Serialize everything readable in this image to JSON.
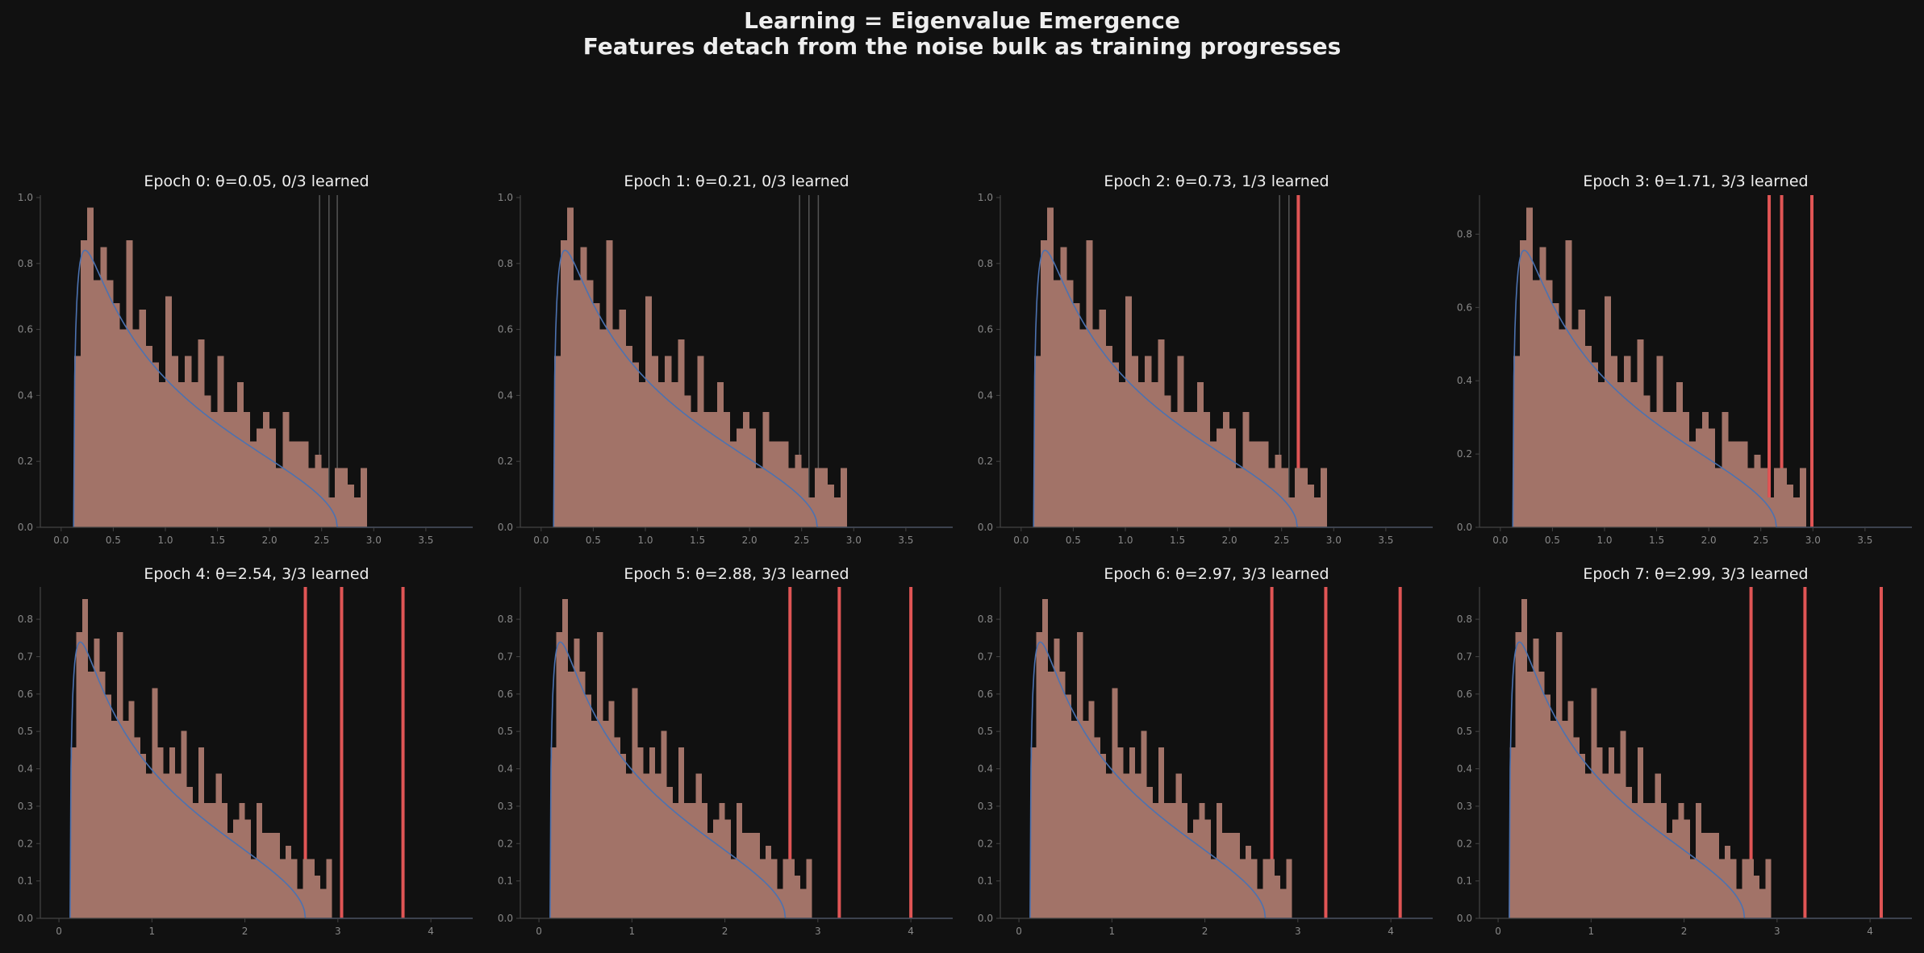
{
  "figure": {
    "title_line1": "Learning = Eigenvalue Emergence",
    "title_line2": "Features detach from the noise bulk as training progresses"
  },
  "colors": {
    "background": "#111111",
    "histogram_fill": "#a27368",
    "bulk_curve": "#4c72b0",
    "learned_spike": "#e05555",
    "unlearned_spike": "#555555",
    "axis": "#444444",
    "tick_label": "#888888",
    "text": "#eeeeee"
  },
  "chart_data": [
    {
      "type": "histogram",
      "title": "Epoch 0: θ=0.05, 0/3 learned",
      "theta": 0.05,
      "learned": 0,
      "total": 3,
      "xlim": [
        -0.2,
        3.95
      ],
      "ylim": [
        0,
        1.0
      ],
      "xticks": [
        0.0,
        0.5,
        1.0,
        1.5,
        2.0,
        2.5,
        3.0,
        3.5
      ],
      "xtick_labels": [
        "0.0",
        "0.5",
        "1.0",
        "1.5",
        "2.0",
        "2.5",
        "3.0",
        "3.5"
      ],
      "yticks": [
        0.0,
        0.2,
        0.4,
        0.6,
        0.8,
        1.0
      ],
      "ytick_labels": [
        "0.0",
        "0.2",
        "0.4",
        "0.6",
        "0.8",
        "1.0"
      ],
      "bulk_edge": 2.65,
      "spikes": [
        {
          "x": 2.48,
          "learned": false
        },
        {
          "x": 2.57,
          "learned": false
        },
        {
          "x": 2.65,
          "learned": false
        }
      ]
    },
    {
      "type": "histogram",
      "title": "Epoch 1: θ=0.21, 0/3 learned",
      "theta": 0.21,
      "learned": 0,
      "total": 3,
      "xlim": [
        -0.2,
        3.95
      ],
      "ylim": [
        0,
        1.0
      ],
      "xticks": [
        0.0,
        0.5,
        1.0,
        1.5,
        2.0,
        2.5,
        3.0,
        3.5
      ],
      "xtick_labels": [
        "0.0",
        "0.5",
        "1.0",
        "1.5",
        "2.0",
        "2.5",
        "3.0",
        "3.5"
      ],
      "yticks": [
        0.0,
        0.2,
        0.4,
        0.6,
        0.8,
        1.0
      ],
      "ytick_labels": [
        "0.0",
        "0.2",
        "0.4",
        "0.6",
        "0.8",
        "1.0"
      ],
      "bulk_edge": 2.65,
      "spikes": [
        {
          "x": 2.48,
          "learned": false
        },
        {
          "x": 2.57,
          "learned": false
        },
        {
          "x": 2.66,
          "learned": false
        }
      ]
    },
    {
      "type": "histogram",
      "title": "Epoch 2: θ=0.73, 1/3 learned",
      "theta": 0.73,
      "learned": 1,
      "total": 3,
      "xlim": [
        -0.2,
        3.95
      ],
      "ylim": [
        0,
        1.0
      ],
      "xticks": [
        0.0,
        0.5,
        1.0,
        1.5,
        2.0,
        2.5,
        3.0,
        3.5
      ],
      "xtick_labels": [
        "0.0",
        "0.5",
        "1.0",
        "1.5",
        "2.0",
        "2.5",
        "3.0",
        "3.5"
      ],
      "yticks": [
        0.0,
        0.2,
        0.4,
        0.6,
        0.8,
        1.0
      ],
      "ytick_labels": [
        "0.0",
        "0.2",
        "0.4",
        "0.6",
        "0.8",
        "1.0"
      ],
      "bulk_edge": 2.65,
      "spikes": [
        {
          "x": 2.48,
          "learned": false
        },
        {
          "x": 2.57,
          "learned": false
        },
        {
          "x": 2.66,
          "learned": true
        }
      ]
    },
    {
      "type": "histogram",
      "title": "Epoch 3: θ=1.71, 3/3 learned",
      "theta": 1.71,
      "learned": 3,
      "total": 3,
      "xlim": [
        -0.2,
        3.95
      ],
      "ylim": [
        0,
        0.9
      ],
      "xticks": [
        0.0,
        0.5,
        1.0,
        1.5,
        2.0,
        2.5,
        3.0,
        3.5
      ],
      "xtick_labels": [
        "0.0",
        "0.5",
        "1.0",
        "1.5",
        "2.0",
        "2.5",
        "3.0",
        "3.5"
      ],
      "yticks": [
        0.0,
        0.2,
        0.4,
        0.6,
        0.8
      ],
      "ytick_labels": [
        "0.0",
        "0.2",
        "0.4",
        "0.6",
        "0.8"
      ],
      "bulk_edge": 2.65,
      "spikes": [
        {
          "x": 2.58,
          "learned": true
        },
        {
          "x": 2.7,
          "learned": true
        },
        {
          "x": 2.99,
          "learned": true
        }
      ]
    },
    {
      "type": "histogram",
      "title": "Epoch 4: θ=2.54, 3/3 learned",
      "theta": 2.54,
      "learned": 3,
      "total": 3,
      "xlim": [
        -0.2,
        4.45
      ],
      "ylim": [
        0,
        0.88
      ],
      "xticks": [
        0,
        1,
        2,
        3,
        4
      ],
      "xtick_labels": [
        "0",
        "1",
        "2",
        "3",
        "4"
      ],
      "yticks": [
        0.0,
        0.1,
        0.2,
        0.3,
        0.4,
        0.5,
        0.6,
        0.7,
        0.8
      ],
      "ytick_labels": [
        "0.0",
        "0.1",
        "0.2",
        "0.3",
        "0.4",
        "0.5",
        "0.6",
        "0.7",
        "0.8"
      ],
      "bulk_edge": 2.65,
      "spikes": [
        {
          "x": 2.65,
          "learned": true
        },
        {
          "x": 3.04,
          "learned": true
        },
        {
          "x": 3.7,
          "learned": true
        }
      ]
    },
    {
      "type": "histogram",
      "title": "Epoch 5: θ=2.88, 3/3 learned",
      "theta": 2.88,
      "learned": 3,
      "total": 3,
      "xlim": [
        -0.2,
        4.45
      ],
      "ylim": [
        0,
        0.88
      ],
      "xticks": [
        0,
        1,
        2,
        3,
        4
      ],
      "xtick_labels": [
        "0",
        "1",
        "2",
        "3",
        "4"
      ],
      "yticks": [
        0.0,
        0.1,
        0.2,
        0.3,
        0.4,
        0.5,
        0.6,
        0.7,
        0.8
      ],
      "ytick_labels": [
        "0.0",
        "0.1",
        "0.2",
        "0.3",
        "0.4",
        "0.5",
        "0.6",
        "0.7",
        "0.8"
      ],
      "bulk_edge": 2.65,
      "spikes": [
        {
          "x": 2.7,
          "learned": true
        },
        {
          "x": 3.23,
          "learned": true
        },
        {
          "x": 4.0,
          "learned": true
        }
      ]
    },
    {
      "type": "histogram",
      "title": "Epoch 6: θ=2.97, 3/3 learned",
      "theta": 2.97,
      "learned": 3,
      "total": 3,
      "xlim": [
        -0.2,
        4.45
      ],
      "ylim": [
        0,
        0.88
      ],
      "xticks": [
        0,
        1,
        2,
        3,
        4
      ],
      "xtick_labels": [
        "0",
        "1",
        "2",
        "3",
        "4"
      ],
      "yticks": [
        0.0,
        0.1,
        0.2,
        0.3,
        0.4,
        0.5,
        0.6,
        0.7,
        0.8
      ],
      "ytick_labels": [
        "0.0",
        "0.1",
        "0.2",
        "0.3",
        "0.4",
        "0.5",
        "0.6",
        "0.7",
        "0.8"
      ],
      "bulk_edge": 2.65,
      "spikes": [
        {
          "x": 2.72,
          "learned": true
        },
        {
          "x": 3.3,
          "learned": true
        },
        {
          "x": 4.1,
          "learned": true
        }
      ]
    },
    {
      "type": "histogram",
      "title": "Epoch 7: θ=2.99, 3/3 learned",
      "theta": 2.99,
      "learned": 3,
      "total": 3,
      "xlim": [
        -0.2,
        4.45
      ],
      "ylim": [
        0,
        0.88
      ],
      "xticks": [
        0,
        1,
        2,
        3,
        4
      ],
      "xtick_labels": [
        "0",
        "1",
        "2",
        "3",
        "4"
      ],
      "yticks": [
        0.0,
        0.1,
        0.2,
        0.3,
        0.4,
        0.5,
        0.6,
        0.7,
        0.8
      ],
      "ytick_labels": [
        "0.0",
        "0.1",
        "0.2",
        "0.3",
        "0.4",
        "0.5",
        "0.6",
        "0.7",
        "0.8"
      ],
      "bulk_edge": 2.65,
      "spikes": [
        {
          "x": 2.72,
          "learned": true
        },
        {
          "x": 3.3,
          "learned": true
        },
        {
          "x": 4.12,
          "learned": true
        }
      ]
    }
  ],
  "histogram_bulk": {
    "bin_width": 0.0625,
    "bin_start": 0.125,
    "bin_values": [
      0.52,
      0.87,
      0.97,
      0.75,
      0.85,
      0.75,
      0.68,
      0.6,
      0.87,
      0.6,
      0.66,
      0.55,
      0.5,
      0.44,
      0.7,
      0.52,
      0.44,
      0.52,
      0.44,
      0.57,
      0.4,
      0.35,
      0.52,
      0.35,
      0.35,
      0.44,
      0.35,
      0.26,
      0.3,
      0.35,
      0.3,
      0.18,
      0.35,
      0.26,
      0.26,
      0.26,
      0.18,
      0.22,
      0.18,
      0.09,
      0.18,
      0.18,
      0.13,
      0.09,
      0.18
    ]
  }
}
